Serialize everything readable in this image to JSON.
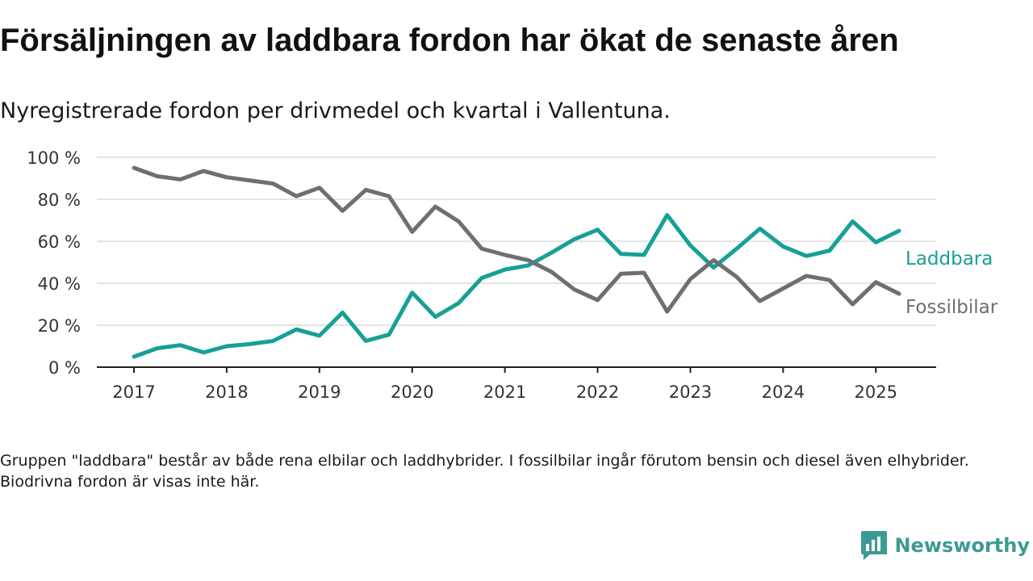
{
  "title": "Försäljningen av laddbara fordon har ökat de senaste åren",
  "subtitle": "Nyregistrerade fordon per drivmedel och kvartal i Vallentuna.",
  "footnote": "Gruppen \"laddbara\" består av både rena elbilar och laddhybrider. I fossilbilar ingår förutom bensin och diesel även elhybrider. Biodrivna fordon är visas inte här.",
  "brand": {
    "name": "Newsworthy",
    "logo_icon": "newsworthy-chart-logo-icon",
    "color": "#3d9a93"
  },
  "chart_data": {
    "type": "line",
    "title": "",
    "xlabel": "",
    "ylabel": "",
    "ylim": [
      0,
      100
    ],
    "y_ticks": [
      {
        "value": 0,
        "label": "0 %"
      },
      {
        "value": 20,
        "label": "20 %"
      },
      {
        "value": 40,
        "label": "40 %"
      },
      {
        "value": 60,
        "label": "60 %"
      },
      {
        "value": 80,
        "label": "80 %"
      },
      {
        "value": 100,
        "label": "100 %"
      }
    ],
    "x_ticks": [
      "2017",
      "2018",
      "2019",
      "2020",
      "2021",
      "2022",
      "2023",
      "2024",
      "2025"
    ],
    "grid": "horizontal",
    "legend": "direct labels at line ends (right)",
    "x": [
      "2017 Q1",
      "2017 Q2",
      "2017 Q3",
      "2017 Q4",
      "2018 Q1",
      "2018 Q2",
      "2018 Q3",
      "2018 Q4",
      "2019 Q1",
      "2019 Q2",
      "2019 Q3",
      "2019 Q4",
      "2020 Q1",
      "2020 Q2",
      "2020 Q3",
      "2020 Q4",
      "2021 Q1",
      "2021 Q2",
      "2021 Q3",
      "2021 Q4",
      "2022 Q1",
      "2022 Q2",
      "2022 Q3",
      "2022 Q4",
      "2023 Q1",
      "2023 Q2",
      "2023 Q3",
      "2023 Q4",
      "2024 Q1",
      "2024 Q2",
      "2024 Q3",
      "2024 Q4",
      "2025 Q1",
      "2025 Q2"
    ],
    "series": [
      {
        "name": "Laddbara",
        "color": "#16a096",
        "values": [
          5,
          9,
          10.5,
          7,
          10,
          11,
          12.5,
          18,
          15,
          26,
          12.5,
          15.5,
          35.5,
          24,
          30.5,
          42.5,
          46.5,
          48.5,
          54.5,
          61,
          65.5,
          54,
          53.5,
          72.5,
          58,
          47.5,
          56.5,
          66,
          57.5,
          53,
          55.5,
          69.5,
          59.5,
          65
        ]
      },
      {
        "name": "Fossilbilar",
        "color": "#6e6e73",
        "values": [
          95,
          91,
          89.5,
          93.5,
          90.5,
          89,
          87.5,
          81.5,
          85.5,
          74.5,
          84.5,
          81.5,
          64.5,
          76.5,
          69.5,
          56.5,
          53.5,
          51,
          45.5,
          37,
          32,
          44.5,
          45,
          26.5,
          42,
          51,
          43,
          31.5,
          37.5,
          43.5,
          41.5,
          30,
          40.5,
          35
        ]
      }
    ]
  }
}
